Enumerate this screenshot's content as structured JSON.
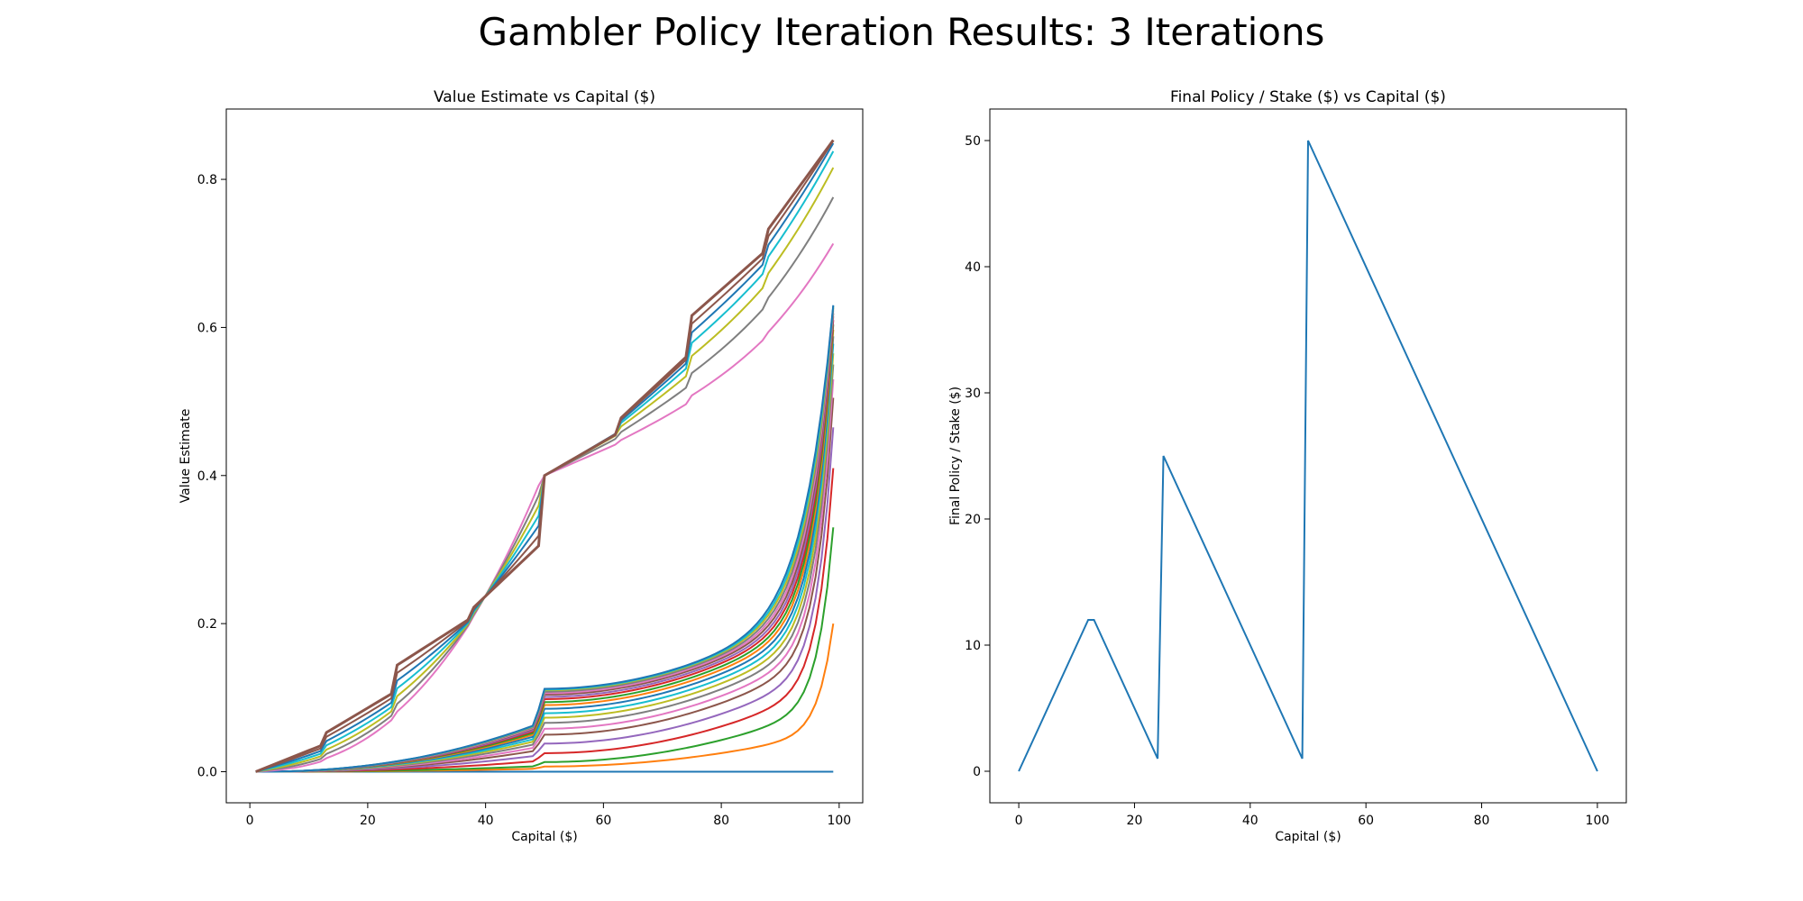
{
  "suptitle": "Gambler Policy Iteration Results: 3 Iterations",
  "colors": [
    "#1f77b4",
    "#ff7f0e",
    "#2ca02c",
    "#d62728",
    "#9467bd",
    "#8c564b",
    "#e377c2",
    "#7f7f7f",
    "#bcbd22",
    "#17becf"
  ],
  "chart_data": [
    {
      "type": "line",
      "title": "Value Estimate vs Capital ($)",
      "xlabel": "Capital ($)",
      "ylabel": "Value Estimate",
      "xlim": [
        -4,
        104
      ],
      "ylim": [
        -0.042,
        0.895
      ],
      "xticks": [
        0,
        20,
        40,
        60,
        80,
        100
      ],
      "yticks": [
        0.0,
        0.2,
        0.4,
        0.6,
        0.8
      ],
      "ytick_labels": [
        "0.0",
        "0.2",
        "0.4",
        "0.6",
        "0.8"
      ],
      "x_range": [
        1,
        99
      ],
      "grid": false,
      "legend": "none",
      "note_series": "early sweep curves: value v(x) near 0 except a blow-up near x=99; final curves: staircase from 0 to 0.85",
      "series_end_values_at_99": [
        0.0,
        0.2,
        0.33,
        0.41,
        0.465,
        0.505,
        0.53,
        0.55,
        0.565,
        0.578,
        0.588,
        0.597,
        0.604,
        0.61,
        0.615,
        0.619,
        0.623,
        0.626,
        0.628,
        0.629,
        0.63
      ],
      "series_values_at_50": [
        0.0,
        0.007,
        0.013,
        0.025,
        0.038,
        0.05,
        0.058,
        0.066,
        0.073,
        0.079,
        0.085,
        0.09,
        0.094,
        0.098,
        0.101,
        0.104,
        0.106,
        0.108,
        0.11,
        0.111,
        0.112
      ],
      "converged_anchor_points": {
        "x": [
          1,
          12,
          13,
          24,
          25,
          37,
          38,
          49,
          50,
          62,
          63,
          74,
          75,
          87,
          88,
          99
        ],
        "y": [
          0.0,
          0.035,
          0.053,
          0.105,
          0.144,
          0.205,
          0.222,
          0.305,
          0.4,
          0.455,
          0.478,
          0.56,
          0.616,
          0.7,
          0.733,
          0.853
        ]
      },
      "converging_curve_end_values": [
        0.69,
        0.745,
        0.788,
        0.818,
        0.838,
        0.848,
        0.853
      ]
    },
    {
      "type": "line",
      "title": "Final Policy / Stake ($) vs Capital ($)",
      "xlabel": "Capital ($)",
      "ylabel": "Final Policy / Stake ($)",
      "xlim": [
        -5,
        105
      ],
      "ylim": [
        -2.5,
        52.5
      ],
      "xticks": [
        0,
        20,
        40,
        60,
        80,
        100
      ],
      "yticks": [
        0,
        10,
        20,
        30,
        40,
        50
      ],
      "grid": false,
      "legend": "none",
      "series": [
        {
          "x": [
            0,
            12,
            13,
            24,
            25,
            49,
            50,
            100
          ],
          "y": [
            0,
            12,
            12,
            1,
            25,
            1,
            50,
            0
          ]
        }
      ]
    }
  ]
}
